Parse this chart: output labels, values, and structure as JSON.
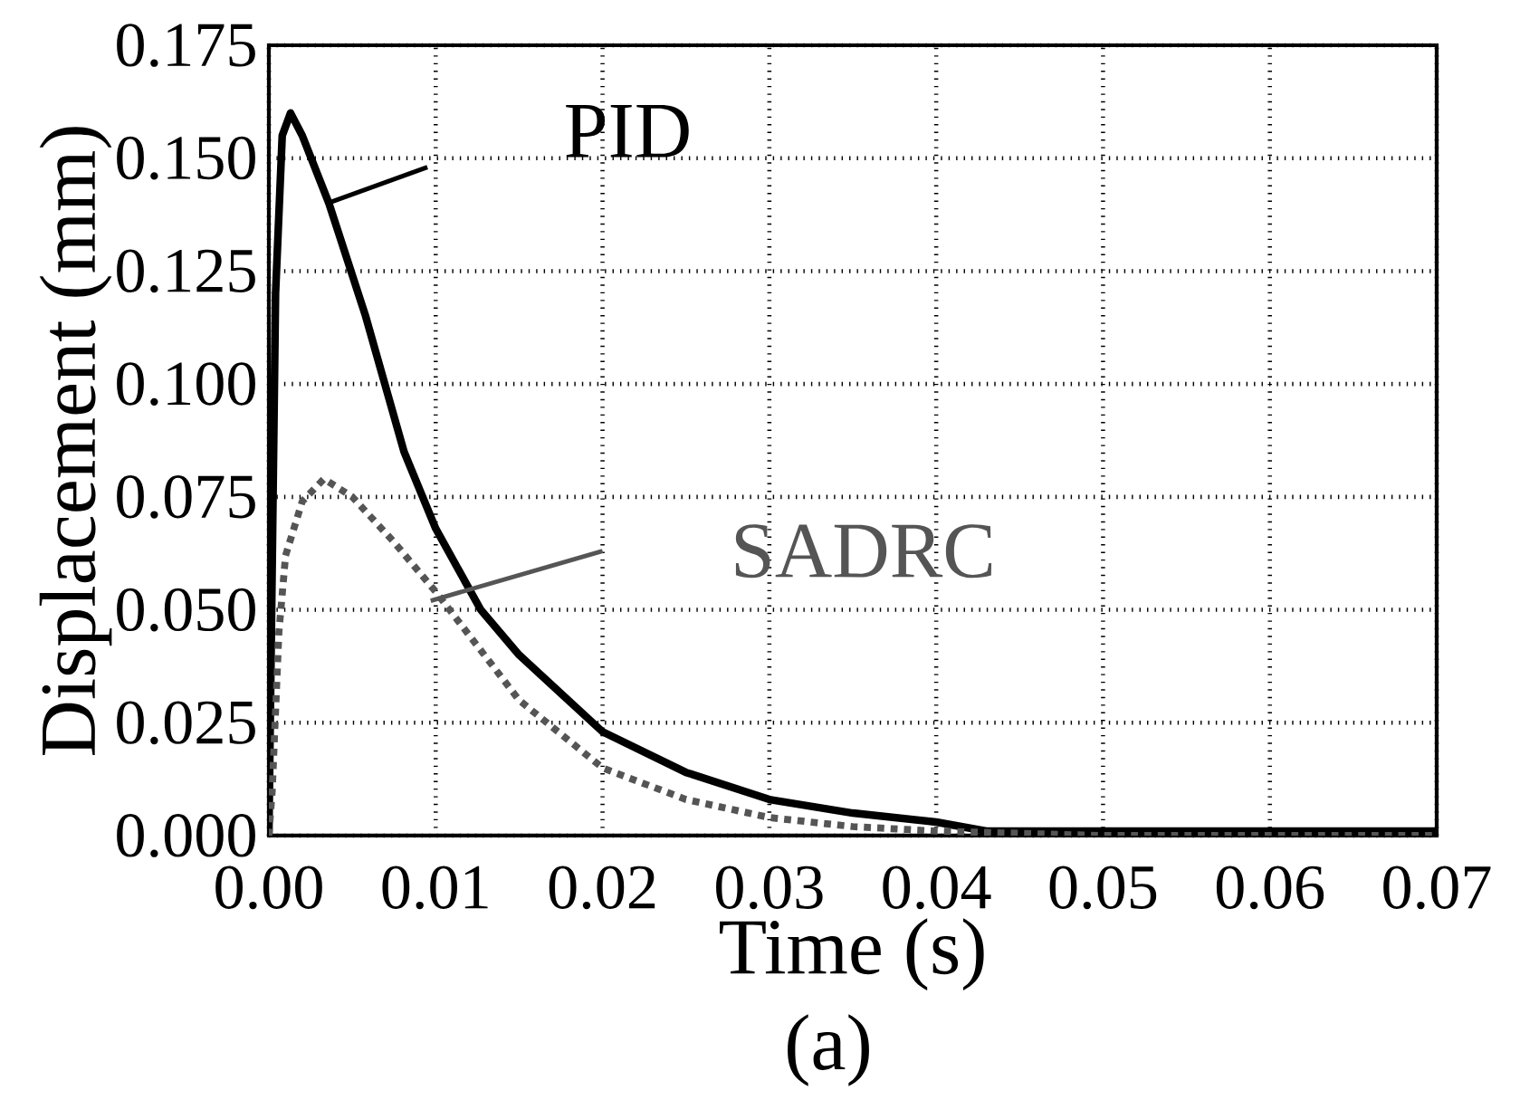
{
  "chart_data": {
    "type": "line",
    "xlabel": "Time (s)",
    "ylabel": "Displacement (mm)",
    "xlim": [
      0,
      0.07
    ],
    "ylim": [
      0,
      0.175
    ],
    "xticks": [
      {
        "value": 0,
        "label": "0.00"
      },
      0.01,
      0.02,
      0.03,
      0.04,
      0.05,
      0.06,
      0.07
    ],
    "yticks": [
      {
        "value": 0,
        "label": "0.000"
      },
      {
        "value": 0.025,
        "label": "0.025"
      },
      {
        "value": 0.05,
        "label": "0.050"
      },
      {
        "value": 0.075,
        "label": "0.075"
      },
      {
        "value": 0.1,
        "label": "0.100"
      },
      {
        "value": 0.125,
        "label": "0.125"
      },
      {
        "value": 0.15,
        "label": "0.150"
      },
      {
        "value": 0.175,
        "label": "0.175"
      }
    ],
    "grid": true,
    "marker": "none",
    "legend": "top",
    "series": [
      {
        "name": "PID",
        "color": "#000000",
        "line_style": "solid",
        "x": [
          0,
          0.0002,
          0.0004,
          0.0008,
          0.0013,
          0.002,
          0.0036,
          0.0058,
          0.0081,
          0.01,
          0.0127,
          0.015,
          0.02,
          0.025,
          0.03,
          0.035,
          0.04,
          0.043,
          0.05,
          0.06,
          0.07
        ],
        "values": [
          0,
          0.06,
          0.12,
          0.155,
          0.16,
          0.155,
          0.14,
          0.115,
          0.085,
          0.068,
          0.05,
          0.04,
          0.023,
          0.014,
          0.008,
          0.005,
          0.003,
          0.001,
          0.001,
          0.001,
          0.001
        ]
      },
      {
        "name": "SADRC",
        "color": "#555555",
        "line_style": "dotted",
        "x": [
          0,
          0.0002,
          0.0006,
          0.001,
          0.002,
          0.0033,
          0.005,
          0.0075,
          0.01,
          0.015,
          0.02,
          0.025,
          0.03,
          0.035,
          0.04,
          0.05,
          0.06,
          0.07
        ],
        "values": [
          0,
          0.01,
          0.045,
          0.062,
          0.074,
          0.079,
          0.075,
          0.065,
          0.054,
          0.03,
          0.015,
          0.008,
          0.004,
          0.002,
          0.001,
          0,
          0,
          0
        ]
      }
    ],
    "annotations": [
      "(a)"
    ]
  }
}
